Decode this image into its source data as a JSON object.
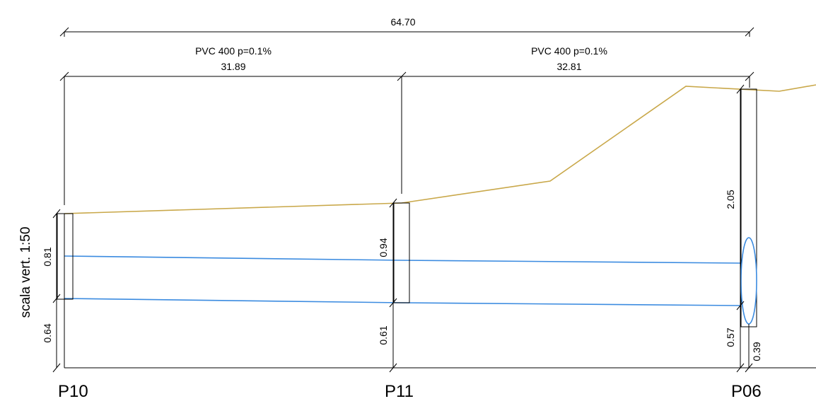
{
  "scale_label": "scala vert. 1:50",
  "overall_length": "64.70",
  "segments": [
    {
      "pipe_spec": "PVC 400 p=0.1%",
      "length": "31.89"
    },
    {
      "pipe_spec": "PVC 400 p=0.1%",
      "length": "32.81"
    }
  ],
  "manholes": [
    {
      "name": "P10",
      "depth_upper": "0.81",
      "depth_lower": "0.64"
    },
    {
      "name": "P11",
      "depth_upper": "0.94",
      "depth_lower": "0.61"
    },
    {
      "name": "P06",
      "depth_upper": "2.05",
      "depth_lower": "0.57",
      "depth_extra": "0.39"
    }
  ],
  "colors": {
    "ground_line": "#c9a84a",
    "pipe_lines": "#3b8be0",
    "linework": "#000000"
  }
}
